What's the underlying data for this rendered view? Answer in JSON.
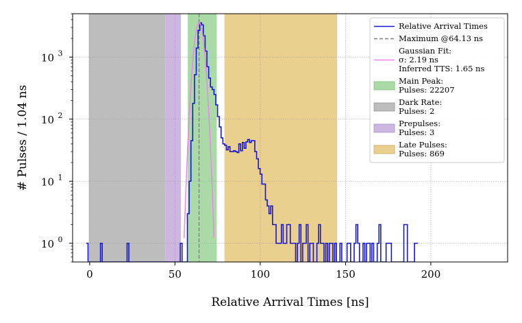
{
  "chart_data": {
    "type": "histogram",
    "xlabel": "Relative Arrival Times [ns]",
    "ylabel": "# Pulses / 1.04 ns",
    "xlim": [
      -10,
      245
    ],
    "ylim": [
      0.5,
      5000
    ],
    "yscale": "log",
    "grid": true,
    "legend_position": "upper-right",
    "x_ticks": [
      0,
      50,
      100,
      150,
      200
    ],
    "x_tick_labels": [
      "0",
      "50",
      "100",
      "150",
      "200"
    ],
    "y_ticks": [
      1,
      10,
      100,
      1000
    ],
    "y_tick_labels": [
      {
        "base": "10",
        "exp": "0"
      },
      {
        "base": "10",
        "exp": "1"
      },
      {
        "base": "10",
        "exp": "2"
      },
      {
        "base": "10",
        "exp": "3"
      }
    ],
    "regions": [
      {
        "name": "Dark Rate",
        "x": [
          -0.5,
          44.5
        ],
        "color": "#bdbdbd"
      },
      {
        "name": "Prepulses",
        "x": [
          44.5,
          53.5
        ],
        "color": "#cdb7e1"
      },
      {
        "name": "Main Peak",
        "x": [
          57.5,
          74.5
        ],
        "color": "#aadba6"
      },
      {
        "name": "Late Pulses",
        "x": [
          79.0,
          145.0
        ],
        "color": "#ead08e"
      }
    ],
    "maximum_line": {
      "x": 64.13,
      "label": "Maximum @64.13 ns",
      "color": "#808080"
    },
    "gaussian": {
      "mu": 64.13,
      "sigma": 2.19,
      "amplitude": 3600,
      "color": "#ee82ee"
    },
    "histogram": {
      "name": "Relative Arrival Times",
      "color": "#1515d6",
      "bin_width": 1.04,
      "x_start": -2.0,
      "counts": [
        1,
        0,
        0,
        0,
        0,
        0,
        0,
        0,
        1,
        0,
        0,
        0,
        0,
        0,
        0,
        0,
        0,
        0,
        0,
        0,
        0,
        0,
        0,
        1,
        0,
        0,
        0,
        0,
        0,
        0,
        0,
        0,
        0,
        0,
        0,
        0,
        0,
        0,
        0,
        0,
        0,
        0,
        0,
        0,
        0,
        0,
        0,
        0,
        0,
        0,
        0,
        0,
        0,
        1,
        0,
        0,
        0,
        3,
        10,
        45,
        180,
        520,
        1400,
        2700,
        3550,
        3300,
        2200,
        1250,
        700,
        460,
        330,
        300,
        250,
        170,
        110,
        75,
        50,
        40,
        38,
        32,
        36,
        30,
        30,
        31,
        30,
        29,
        40,
        31,
        42,
        34,
        43,
        47,
        42,
        45,
        45,
        30,
        23,
        16,
        13,
        9,
        9,
        5,
        4,
        3,
        4,
        2,
        2,
        1,
        1,
        1,
        2,
        1,
        1,
        2,
        2,
        1,
        1,
        1,
        0,
        1,
        2,
        0,
        1,
        1,
        2,
        0,
        1,
        1,
        0,
        0,
        1,
        2,
        1,
        1,
        0,
        1,
        0,
        1,
        1,
        0,
        1,
        0,
        0,
        1,
        0,
        0,
        0,
        1,
        1,
        0,
        0,
        1,
        2,
        1,
        0,
        0,
        1,
        0,
        1,
        1,
        0,
        1,
        0,
        0,
        1,
        2,
        0,
        0,
        0,
        1,
        1,
        1,
        0,
        0,
        0,
        0,
        0,
        0,
        0,
        2,
        2,
        0,
        0,
        0,
        0,
        1,
        1
      ],
      "legend_label": "Relative Arrival Times"
    },
    "legend": {
      "entries": [
        {
          "kind": "line",
          "color": "#1515d6",
          "lines": [
            "Relative Arrival Times"
          ]
        },
        {
          "kind": "dash",
          "color": "#808080",
          "lines": [
            "Maximum @64.13 ns"
          ]
        },
        {
          "kind": "line",
          "color": "#ee82ee",
          "lines": [
            "Gaussian Fit:",
            "σ: 2.19 ns",
            "Inferred TTS: 1.65 ns"
          ]
        },
        {
          "kind": "patch",
          "color": "#aadba6",
          "edge": "#7fbf7a",
          "lines": [
            "Main Peak:",
            "Pulses: 22207"
          ]
        },
        {
          "kind": "patch",
          "color": "#bdbdbd",
          "edge": "#999999",
          "lines": [
            "Dark Rate:",
            "Pulses: 2"
          ]
        },
        {
          "kind": "patch",
          "color": "#cdb7e1",
          "edge": "#a88fc8",
          "lines": [
            "Prepulses:",
            "Pulses: 3"
          ]
        },
        {
          "kind": "patch",
          "color": "#ead08e",
          "edge": "#c9a95c",
          "lines": [
            "Late Pulses:",
            "Pulses: 869"
          ]
        }
      ]
    }
  }
}
